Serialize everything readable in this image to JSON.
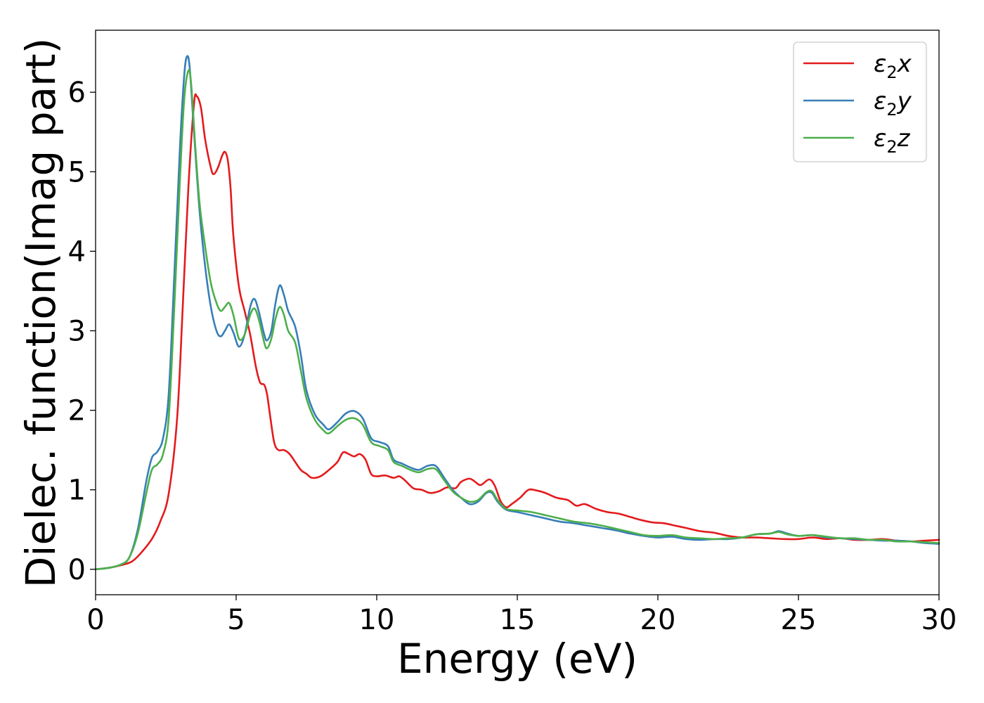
{
  "chart_data": {
    "type": "line",
    "xlabel": "Energy (eV)",
    "ylabel": "Dielec. function(Imag part)",
    "xlim": [
      0,
      30
    ],
    "ylim": [
      -0.32,
      6.78
    ],
    "xticks": [
      0,
      5,
      10,
      15,
      20,
      25,
      30
    ],
    "xtick_labels": [
      "0",
      "5",
      "10",
      "15",
      "20",
      "25",
      "30"
    ],
    "yticks": [
      0,
      1,
      2,
      3,
      4,
      5,
      6
    ],
    "ytick_labels": [
      "0",
      "1",
      "2",
      "3",
      "4",
      "5",
      "6"
    ],
    "grid": false,
    "legend_position": "top-right",
    "series": [
      {
        "name": "ε₂x",
        "legend_base": "ε",
        "legend_sub": "2",
        "legend_var": "x",
        "color": "#e41a1c",
        "points": [
          [
            0,
            0
          ],
          [
            0.5,
            0.02
          ],
          [
            1.0,
            0.06
          ],
          [
            1.3,
            0.1
          ],
          [
            1.6,
            0.2
          ],
          [
            2.0,
            0.38
          ],
          [
            2.3,
            0.6
          ],
          [
            2.6,
            0.95
          ],
          [
            2.9,
            1.9
          ],
          [
            3.1,
            3.3
          ],
          [
            3.3,
            4.8
          ],
          [
            3.5,
            5.85
          ],
          [
            3.6,
            5.95
          ],
          [
            3.75,
            5.8
          ],
          [
            3.9,
            5.4
          ],
          [
            4.1,
            5.05
          ],
          [
            4.2,
            4.97
          ],
          [
            4.35,
            5.05
          ],
          [
            4.5,
            5.2
          ],
          [
            4.6,
            5.25
          ],
          [
            4.7,
            5.15
          ],
          [
            4.8,
            4.8
          ],
          [
            4.9,
            4.2
          ],
          [
            5.1,
            3.55
          ],
          [
            5.3,
            3.25
          ],
          [
            5.5,
            2.95
          ],
          [
            5.7,
            2.55
          ],
          [
            5.85,
            2.35
          ],
          [
            6.0,
            2.32
          ],
          [
            6.1,
            2.2
          ],
          [
            6.2,
            1.95
          ],
          [
            6.35,
            1.6
          ],
          [
            6.5,
            1.5
          ],
          [
            6.7,
            1.5
          ],
          [
            6.9,
            1.45
          ],
          [
            7.1,
            1.35
          ],
          [
            7.3,
            1.25
          ],
          [
            7.5,
            1.2
          ],
          [
            7.7,
            1.15
          ],
          [
            8.0,
            1.17
          ],
          [
            8.3,
            1.25
          ],
          [
            8.6,
            1.35
          ],
          [
            8.8,
            1.47
          ],
          [
            9.0,
            1.45
          ],
          [
            9.2,
            1.42
          ],
          [
            9.4,
            1.45
          ],
          [
            9.6,
            1.38
          ],
          [
            9.8,
            1.2
          ],
          [
            10.0,
            1.17
          ],
          [
            10.3,
            1.18
          ],
          [
            10.6,
            1.15
          ],
          [
            10.8,
            1.17
          ],
          [
            11.0,
            1.12
          ],
          [
            11.3,
            1.02
          ],
          [
            11.6,
            1.0
          ],
          [
            11.9,
            0.96
          ],
          [
            12.2,
            0.98
          ],
          [
            12.5,
            1.03
          ],
          [
            12.8,
            1.02
          ],
          [
            13.0,
            1.1
          ],
          [
            13.3,
            1.14
          ],
          [
            13.5,
            1.1
          ],
          [
            13.7,
            1.06
          ],
          [
            14.0,
            1.13
          ],
          [
            14.2,
            1.05
          ],
          [
            14.4,
            0.86
          ],
          [
            14.6,
            0.78
          ],
          [
            14.8,
            0.82
          ],
          [
            15.1,
            0.9
          ],
          [
            15.4,
            1.0
          ],
          [
            15.7,
            0.99
          ],
          [
            16.0,
            0.96
          ],
          [
            16.4,
            0.9
          ],
          [
            16.8,
            0.87
          ],
          [
            17.1,
            0.8
          ],
          [
            17.4,
            0.82
          ],
          [
            17.8,
            0.76
          ],
          [
            18.2,
            0.72
          ],
          [
            18.6,
            0.7
          ],
          [
            19.0,
            0.66
          ],
          [
            19.4,
            0.62
          ],
          [
            19.8,
            0.59
          ],
          [
            20.2,
            0.58
          ],
          [
            20.6,
            0.55
          ],
          [
            21.0,
            0.52
          ],
          [
            21.5,
            0.48
          ],
          [
            22.0,
            0.46
          ],
          [
            22.5,
            0.42
          ],
          [
            23.0,
            0.4
          ],
          [
            23.5,
            0.4
          ],
          [
            24.0,
            0.39
          ],
          [
            24.5,
            0.38
          ],
          [
            25.0,
            0.38
          ],
          [
            25.5,
            0.4
          ],
          [
            26.0,
            0.38
          ],
          [
            26.5,
            0.39
          ],
          [
            27.0,
            0.37
          ],
          [
            27.5,
            0.37
          ],
          [
            28.0,
            0.38
          ],
          [
            28.5,
            0.36
          ],
          [
            29.0,
            0.35
          ],
          [
            29.5,
            0.36
          ],
          [
            30.0,
            0.37
          ]
        ]
      },
      {
        "name": "ε₂y",
        "legend_base": "ε",
        "legend_sub": "2",
        "legend_var": "y",
        "color": "#377eb8",
        "points": [
          [
            0,
            0
          ],
          [
            0.5,
            0.02
          ],
          [
            0.9,
            0.06
          ],
          [
            1.2,
            0.15
          ],
          [
            1.5,
            0.5
          ],
          [
            1.8,
            1.1
          ],
          [
            2.0,
            1.4
          ],
          [
            2.2,
            1.48
          ],
          [
            2.4,
            1.65
          ],
          [
            2.6,
            2.2
          ],
          [
            2.8,
            3.7
          ],
          [
            3.0,
            5.3
          ],
          [
            3.15,
            6.2
          ],
          [
            3.25,
            6.45
          ],
          [
            3.35,
            6.3
          ],
          [
            3.5,
            5.5
          ],
          [
            3.7,
            4.5
          ],
          [
            3.9,
            3.8
          ],
          [
            4.1,
            3.3
          ],
          [
            4.3,
            3.0
          ],
          [
            4.45,
            2.93
          ],
          [
            4.6,
            3.0
          ],
          [
            4.75,
            3.08
          ],
          [
            4.9,
            2.98
          ],
          [
            5.1,
            2.8
          ],
          [
            5.3,
            2.95
          ],
          [
            5.5,
            3.3
          ],
          [
            5.65,
            3.4
          ],
          [
            5.8,
            3.25
          ],
          [
            6.0,
            2.95
          ],
          [
            6.1,
            2.88
          ],
          [
            6.25,
            3.0
          ],
          [
            6.4,
            3.35
          ],
          [
            6.55,
            3.57
          ],
          [
            6.7,
            3.45
          ],
          [
            6.85,
            3.25
          ],
          [
            7.1,
            3.05
          ],
          [
            7.3,
            2.7
          ],
          [
            7.5,
            2.25
          ],
          [
            7.8,
            1.95
          ],
          [
            8.1,
            1.82
          ],
          [
            8.3,
            1.76
          ],
          [
            8.6,
            1.85
          ],
          [
            8.9,
            1.96
          ],
          [
            9.2,
            1.99
          ],
          [
            9.5,
            1.9
          ],
          [
            9.8,
            1.65
          ],
          [
            10.1,
            1.6
          ],
          [
            10.4,
            1.55
          ],
          [
            10.6,
            1.38
          ],
          [
            10.9,
            1.33
          ],
          [
            11.2,
            1.28
          ],
          [
            11.5,
            1.25
          ],
          [
            11.8,
            1.3
          ],
          [
            12.1,
            1.3
          ],
          [
            12.4,
            1.15
          ],
          [
            12.7,
            1.0
          ],
          [
            13.0,
            0.9
          ],
          [
            13.3,
            0.82
          ],
          [
            13.6,
            0.85
          ],
          [
            13.9,
            0.96
          ],
          [
            14.1,
            0.96
          ],
          [
            14.3,
            0.85
          ],
          [
            14.6,
            0.75
          ],
          [
            15.0,
            0.72
          ],
          [
            15.5,
            0.68
          ],
          [
            16.0,
            0.64
          ],
          [
            16.5,
            0.6
          ],
          [
            17.0,
            0.58
          ],
          [
            17.5,
            0.55
          ],
          [
            18.0,
            0.52
          ],
          [
            18.5,
            0.49
          ],
          [
            19.0,
            0.45
          ],
          [
            19.5,
            0.42
          ],
          [
            20.0,
            0.4
          ],
          [
            20.5,
            0.41
          ],
          [
            21.0,
            0.38
          ],
          [
            21.5,
            0.37
          ],
          [
            22.0,
            0.38
          ],
          [
            22.5,
            0.38
          ],
          [
            23.0,
            0.4
          ],
          [
            23.5,
            0.44
          ],
          [
            24.0,
            0.45
          ],
          [
            24.3,
            0.48
          ],
          [
            24.6,
            0.45
          ],
          [
            25.0,
            0.42
          ],
          [
            25.5,
            0.43
          ],
          [
            26.0,
            0.4
          ],
          [
            26.5,
            0.39
          ],
          [
            27.0,
            0.38
          ],
          [
            27.5,
            0.37
          ],
          [
            28.0,
            0.36
          ],
          [
            28.5,
            0.36
          ],
          [
            29.0,
            0.35
          ],
          [
            29.5,
            0.33
          ],
          [
            30.0,
            0.32
          ]
        ]
      },
      {
        "name": "ε₂z",
        "legend_base": "ε",
        "legend_sub": "2",
        "legend_var": "z",
        "color": "#4daf4a",
        "points": [
          [
            0,
            0
          ],
          [
            0.5,
            0.02
          ],
          [
            0.9,
            0.06
          ],
          [
            1.2,
            0.15
          ],
          [
            1.5,
            0.45
          ],
          [
            1.8,
            0.95
          ],
          [
            2.0,
            1.25
          ],
          [
            2.2,
            1.32
          ],
          [
            2.4,
            1.45
          ],
          [
            2.6,
            1.9
          ],
          [
            2.8,
            3.3
          ],
          [
            3.0,
            4.9
          ],
          [
            3.15,
            5.9
          ],
          [
            3.3,
            6.27
          ],
          [
            3.4,
            6.1
          ],
          [
            3.55,
            5.3
          ],
          [
            3.7,
            4.6
          ],
          [
            3.9,
            4.05
          ],
          [
            4.1,
            3.6
          ],
          [
            4.3,
            3.35
          ],
          [
            4.45,
            3.25
          ],
          [
            4.6,
            3.3
          ],
          [
            4.75,
            3.35
          ],
          [
            4.9,
            3.2
          ],
          [
            5.1,
            2.9
          ],
          [
            5.3,
            2.95
          ],
          [
            5.5,
            3.2
          ],
          [
            5.65,
            3.28
          ],
          [
            5.8,
            3.15
          ],
          [
            6.0,
            2.85
          ],
          [
            6.1,
            2.78
          ],
          [
            6.25,
            2.9
          ],
          [
            6.4,
            3.15
          ],
          [
            6.55,
            3.3
          ],
          [
            6.7,
            3.2
          ],
          [
            6.85,
            3.0
          ],
          [
            7.1,
            2.85
          ],
          [
            7.3,
            2.5
          ],
          [
            7.5,
            2.15
          ],
          [
            7.8,
            1.88
          ],
          [
            8.1,
            1.75
          ],
          [
            8.3,
            1.71
          ],
          [
            8.6,
            1.8
          ],
          [
            8.9,
            1.88
          ],
          [
            9.2,
            1.9
          ],
          [
            9.5,
            1.82
          ],
          [
            9.8,
            1.6
          ],
          [
            10.1,
            1.55
          ],
          [
            10.4,
            1.5
          ],
          [
            10.6,
            1.35
          ],
          [
            10.9,
            1.3
          ],
          [
            11.2,
            1.25
          ],
          [
            11.5,
            1.22
          ],
          [
            11.8,
            1.26
          ],
          [
            12.1,
            1.26
          ],
          [
            12.4,
            1.12
          ],
          [
            12.7,
            0.98
          ],
          [
            13.0,
            0.9
          ],
          [
            13.3,
            0.85
          ],
          [
            13.6,
            0.87
          ],
          [
            13.9,
            0.97
          ],
          [
            14.1,
            0.98
          ],
          [
            14.3,
            0.87
          ],
          [
            14.6,
            0.76
          ],
          [
            15.0,
            0.74
          ],
          [
            15.5,
            0.72
          ],
          [
            16.0,
            0.68
          ],
          [
            16.5,
            0.64
          ],
          [
            17.0,
            0.6
          ],
          [
            17.5,
            0.58
          ],
          [
            18.0,
            0.55
          ],
          [
            18.5,
            0.51
          ],
          [
            19.0,
            0.47
          ],
          [
            19.5,
            0.43
          ],
          [
            20.0,
            0.42
          ],
          [
            20.5,
            0.43
          ],
          [
            21.0,
            0.4
          ],
          [
            21.5,
            0.39
          ],
          [
            22.0,
            0.38
          ],
          [
            22.5,
            0.39
          ],
          [
            23.0,
            0.4
          ],
          [
            23.5,
            0.44
          ],
          [
            24.0,
            0.45
          ],
          [
            24.3,
            0.47
          ],
          [
            24.6,
            0.44
          ],
          [
            25.0,
            0.42
          ],
          [
            25.5,
            0.43
          ],
          [
            26.0,
            0.41
          ],
          [
            26.5,
            0.39
          ],
          [
            27.0,
            0.39
          ],
          [
            27.5,
            0.37
          ],
          [
            28.0,
            0.37
          ],
          [
            28.5,
            0.35
          ],
          [
            29.0,
            0.35
          ],
          [
            29.5,
            0.34
          ],
          [
            30.0,
            0.33
          ]
        ]
      }
    ]
  }
}
